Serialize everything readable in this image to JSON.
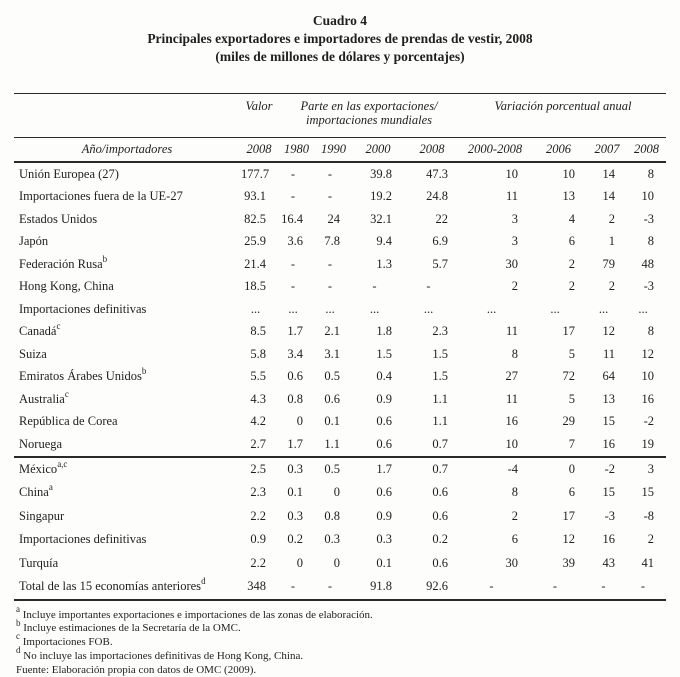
{
  "colors": {
    "background": "#fdfdfb",
    "text": "#1f1f1f",
    "rule": "#2a2a2a"
  },
  "title": {
    "line1": "Cuadro 4",
    "line2": "Principales exportadores e importadores de prendas de vestir, 2008",
    "line3": "(miles de millones de dólares y porcentajes)"
  },
  "table": {
    "group_headers": {
      "valor": "Valor",
      "parte_line1": "Parte en las exportaciones/",
      "parte_line2": "importaciones mundiales",
      "variacion": "Variación porcentual anual"
    },
    "col_headers": [
      "Año/importadores",
      "2008",
      "1980",
      "1990",
      "2000",
      "2008",
      "2000-2008",
      "2006",
      "2007",
      "2008"
    ],
    "sections": [
      {
        "rows": [
          {
            "label": "Unión Europea (27)",
            "sup": "",
            "values": [
              "177.7",
              "-",
              "-",
              "39.8",
              "47.3",
              "10",
              "10",
              "14",
              "8"
            ]
          },
          {
            "label": "Importaciones fuera de la UE-27",
            "sup": "",
            "values": [
              "93.1",
              "-",
              "-",
              "19.2",
              "24.8",
              "11",
              "13",
              "14",
              "10"
            ]
          },
          {
            "label": "Estados Unidos",
            "sup": "",
            "values": [
              "82.5",
              "16.4",
              "24",
              "32.1",
              "22",
              "3",
              "4",
              "2",
              "-3"
            ]
          },
          {
            "label": "Japón",
            "sup": "",
            "values": [
              "25.9",
              "3.6",
              "7.8",
              "9.4",
              "6.9",
              "3",
              "6",
              "1",
              "8"
            ]
          },
          {
            "label": "Federación Rusa",
            "sup": "b",
            "values": [
              "21.4",
              "-",
              "-",
              "1.3",
              "5.7",
              "30",
              "2",
              "79",
              "48"
            ]
          },
          {
            "label": "Hong Kong, China",
            "sup": "",
            "values": [
              "18.5",
              "-",
              "-",
              "-",
              "-",
              "2",
              "2",
              "2",
              "-3"
            ]
          },
          {
            "label": "Importaciones definitivas",
            "sup": "",
            "values": [
              "...",
              "...",
              "...",
              "...",
              "...",
              "...",
              "...",
              "...",
              "..."
            ]
          },
          {
            "label": "Canadá",
            "sup": "c",
            "values": [
              "8.5",
              "1.7",
              "2.1",
              "1.8",
              "2.3",
              "11",
              "17",
              "12",
              "8"
            ]
          },
          {
            "label": "Suiza",
            "sup": "",
            "values": [
              "5.8",
              "3.4",
              "3.1",
              "1.5",
              "1.5",
              "8",
              "5",
              "11",
              "12"
            ]
          },
          {
            "label": "Emiratos Árabes Unidos",
            "sup": "b",
            "values": [
              "5.5",
              "0.6",
              "0.5",
              "0.4",
              "1.5",
              "27",
              "72",
              "64",
              "10"
            ]
          },
          {
            "label": "Australia",
            "sup": "c",
            "values": [
              "4.3",
              "0.8",
              "0.6",
              "0.9",
              "1.1",
              "11",
              "5",
              "13",
              "16"
            ]
          },
          {
            "label": "República de Corea",
            "sup": "",
            "values": [
              "4.2",
              "0",
              "0.1",
              "0.6",
              "1.1",
              "16",
              "29",
              "15",
              "-2"
            ]
          },
          {
            "label": "Noruega",
            "sup": "",
            "values": [
              "2.7",
              "1.7",
              "1.1",
              "0.6",
              "0.7",
              "10",
              "7",
              "16",
              "19"
            ]
          }
        ]
      },
      {
        "rows": [
          {
            "label": "México",
            "sup": "a,c",
            "values": [
              "2.5",
              "0.3",
              "0.5",
              "1.7",
              "0.7",
              "-4",
              "0",
              "-2",
              "3"
            ]
          },
          {
            "label": "China",
            "sup": "a",
            "values": [
              "2.3",
              "0.1",
              "0",
              "0.6",
              "0.6",
              "8",
              "6",
              "15",
              "15"
            ]
          },
          {
            "label": "Singapur",
            "sup": "",
            "values": [
              "2.2",
              "0.3",
              "0.8",
              "0.9",
              "0.6",
              "2",
              "17",
              "-3",
              "-8"
            ]
          },
          {
            "label": "Importaciones definitivas",
            "sup": "",
            "values": [
              "0.9",
              "0.2",
              "0.3",
              "0.3",
              "0.2",
              "6",
              "12",
              "16",
              "2"
            ]
          },
          {
            "label": "Turquía",
            "sup": "",
            "values": [
              "2.2",
              "0",
              "0",
              "0.1",
              "0.6",
              "30",
              "39",
              "43",
              "41"
            ]
          },
          {
            "label": "Total de las 15 economías anteriores",
            "sup": "d",
            "values": [
              "348",
              "-",
              "-",
              "91.8",
              "92.6",
              "-",
              "-",
              "-",
              "-"
            ]
          }
        ]
      }
    ]
  },
  "footnotes": [
    {
      "sup": "a",
      "text": "Incluye importantes exportaciones e importaciones de las zonas de elaboración."
    },
    {
      "sup": "b",
      "text": "Incluye estimaciones de la Secretaría de la OMC."
    },
    {
      "sup": "c",
      "text": "Importaciones FOB."
    },
    {
      "sup": "d",
      "text": "No incluye las importaciones definitivas de Hong Kong, China."
    },
    {
      "sup": "",
      "text": "Fuente: Elaboración propia con datos de OMC (2009)."
    }
  ]
}
